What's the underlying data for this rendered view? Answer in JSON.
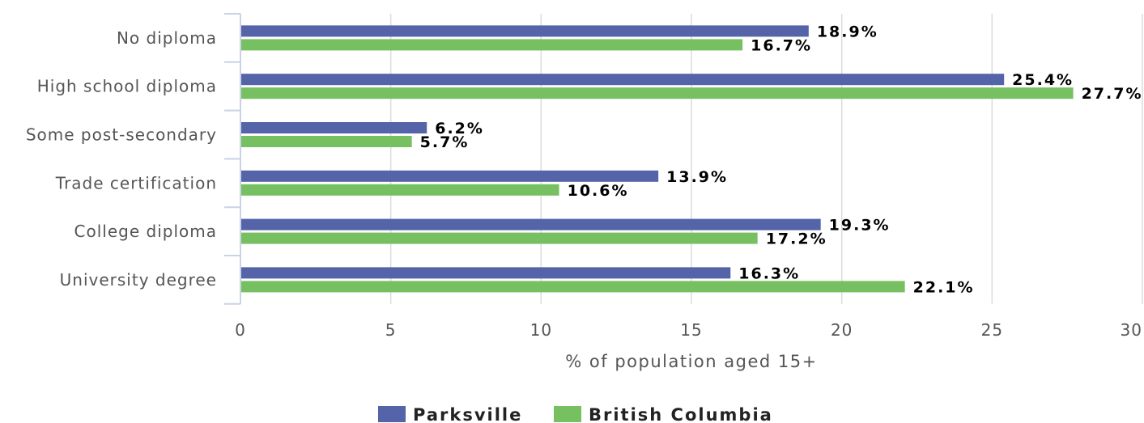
{
  "chart_data": {
    "type": "bar",
    "orientation": "horizontal",
    "categories": [
      "No diploma",
      "High school diploma",
      "Some post-secondary",
      "Trade certification",
      "College diploma",
      "University degree"
    ],
    "series": [
      {
        "name": "Parksville",
        "color": "#5563a8",
        "values": [
          18.9,
          25.4,
          6.2,
          13.9,
          19.3,
          16.3
        ],
        "labels": [
          "18.9%",
          "25.4%",
          "6.2%",
          "13.9%",
          "19.3%",
          "16.3%"
        ]
      },
      {
        "name": "British Columbia",
        "color": "#77c062",
        "values": [
          16.7,
          27.7,
          5.7,
          10.6,
          17.2,
          22.1
        ],
        "labels": [
          "16.7%",
          "27.7%",
          "5.7%",
          "10.6%",
          "17.2%",
          "22.1%"
        ]
      }
    ],
    "xlabel": "% of population aged 15+",
    "xlim": [
      0,
      30
    ],
    "xticks": [
      "0",
      "5",
      "10",
      "15",
      "20",
      "25",
      "30"
    ],
    "grid": true,
    "legend_position": "bottom"
  }
}
